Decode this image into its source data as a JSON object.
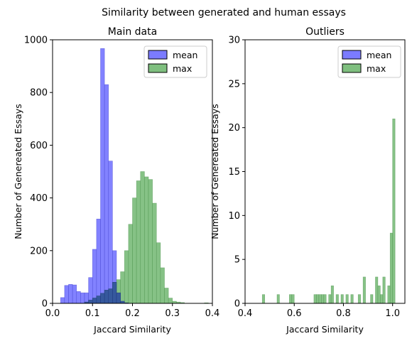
{
  "figure": {
    "suptitle": "Similarity between generated and human essays"
  },
  "colors": {
    "mean": "#7b7bff",
    "max": "#7fbf7f"
  },
  "chart_data": [
    {
      "type": "histogram",
      "title": "Main data",
      "xlabel": "Jaccard Similarity",
      "ylabel": "Number of Genereated Essays",
      "xlim": [
        0.0,
        0.4
      ],
      "ylim": [
        0,
        1000
      ],
      "xticks": [
        "0.0",
        "0.1",
        "0.2",
        "0.3",
        "0.4"
      ],
      "yticks": [
        "0",
        "200",
        "400",
        "600",
        "800",
        "1000"
      ],
      "legend_position": "top-right",
      "bin_width": 0.01,
      "series": [
        {
          "name": "mean",
          "bins": [
            {
              "x": 0.02,
              "v": 22
            },
            {
              "x": 0.03,
              "v": 68
            },
            {
              "x": 0.04,
              "v": 72
            },
            {
              "x": 0.05,
              "v": 70
            },
            {
              "x": 0.06,
              "v": 45
            },
            {
              "x": 0.07,
              "v": 40
            },
            {
              "x": 0.08,
              "v": 40
            },
            {
              "x": 0.09,
              "v": 98
            },
            {
              "x": 0.1,
              "v": 205
            },
            {
              "x": 0.11,
              "v": 320
            },
            {
              "x": 0.12,
              "v": 967
            },
            {
              "x": 0.13,
              "v": 830
            },
            {
              "x": 0.14,
              "v": 540
            },
            {
              "x": 0.15,
              "v": 200
            },
            {
              "x": 0.16,
              "v": 40
            },
            {
              "x": 0.17,
              "v": 8
            },
            {
              "x": 0.18,
              "v": 2
            }
          ]
        },
        {
          "name": "max",
          "bins": [
            {
              "x": 0.08,
              "v": 5
            },
            {
              "x": 0.09,
              "v": 12
            },
            {
              "x": 0.1,
              "v": 20
            },
            {
              "x": 0.11,
              "v": 28
            },
            {
              "x": 0.12,
              "v": 38
            },
            {
              "x": 0.13,
              "v": 50
            },
            {
              "x": 0.14,
              "v": 55
            },
            {
              "x": 0.15,
              "v": 80
            },
            {
              "x": 0.16,
              "v": 90
            },
            {
              "x": 0.17,
              "v": 120
            },
            {
              "x": 0.18,
              "v": 200
            },
            {
              "x": 0.19,
              "v": 300
            },
            {
              "x": 0.2,
              "v": 400
            },
            {
              "x": 0.21,
              "v": 465
            },
            {
              "x": 0.22,
              "v": 500
            },
            {
              "x": 0.23,
              "v": 480
            },
            {
              "x": 0.24,
              "v": 470
            },
            {
              "x": 0.25,
              "v": 380
            },
            {
              "x": 0.26,
              "v": 230
            },
            {
              "x": 0.27,
              "v": 135
            },
            {
              "x": 0.28,
              "v": 58
            },
            {
              "x": 0.29,
              "v": 20
            },
            {
              "x": 0.3,
              "v": 8
            },
            {
              "x": 0.31,
              "v": 5
            },
            {
              "x": 0.32,
              "v": 3
            },
            {
              "x": 0.38,
              "v": 2
            }
          ]
        }
      ]
    },
    {
      "type": "histogram",
      "title": "Outliers",
      "xlabel": "Jaccard Similarity",
      "ylabel": "Number of Genereated Essays",
      "xlim": [
        0.4,
        1.05
      ],
      "ylim": [
        0,
        30
      ],
      "xticks": [
        "0.4",
        "0.6",
        "0.8",
        "1.0"
      ],
      "yticks": [
        "0",
        "5",
        "10",
        "15",
        "20",
        "25",
        "30"
      ],
      "legend_position": "top-right",
      "bin_width": 0.01,
      "series": [
        {
          "name": "mean",
          "bins": []
        },
        {
          "name": "max",
          "bins": [
            {
              "x": 0.47,
              "v": 1
            },
            {
              "x": 0.53,
              "v": 1
            },
            {
              "x": 0.58,
              "v": 1
            },
            {
              "x": 0.59,
              "v": 1
            },
            {
              "x": 0.68,
              "v": 1
            },
            {
              "x": 0.69,
              "v": 1
            },
            {
              "x": 0.7,
              "v": 1
            },
            {
              "x": 0.71,
              "v": 1
            },
            {
              "x": 0.72,
              "v": 1
            },
            {
              "x": 0.74,
              "v": 1
            },
            {
              "x": 0.75,
              "v": 2
            },
            {
              "x": 0.77,
              "v": 1
            },
            {
              "x": 0.79,
              "v": 1
            },
            {
              "x": 0.81,
              "v": 1
            },
            {
              "x": 0.83,
              "v": 1
            },
            {
              "x": 0.86,
              "v": 1
            },
            {
              "x": 0.88,
              "v": 3
            },
            {
              "x": 0.91,
              "v": 1
            },
            {
              "x": 0.93,
              "v": 3
            },
            {
              "x": 0.94,
              "v": 2
            },
            {
              "x": 0.95,
              "v": 1
            },
            {
              "x": 0.96,
              "v": 3
            },
            {
              "x": 0.98,
              "v": 2
            },
            {
              "x": 0.99,
              "v": 8
            },
            {
              "x": 1.0,
              "v": 21
            }
          ]
        }
      ]
    }
  ]
}
